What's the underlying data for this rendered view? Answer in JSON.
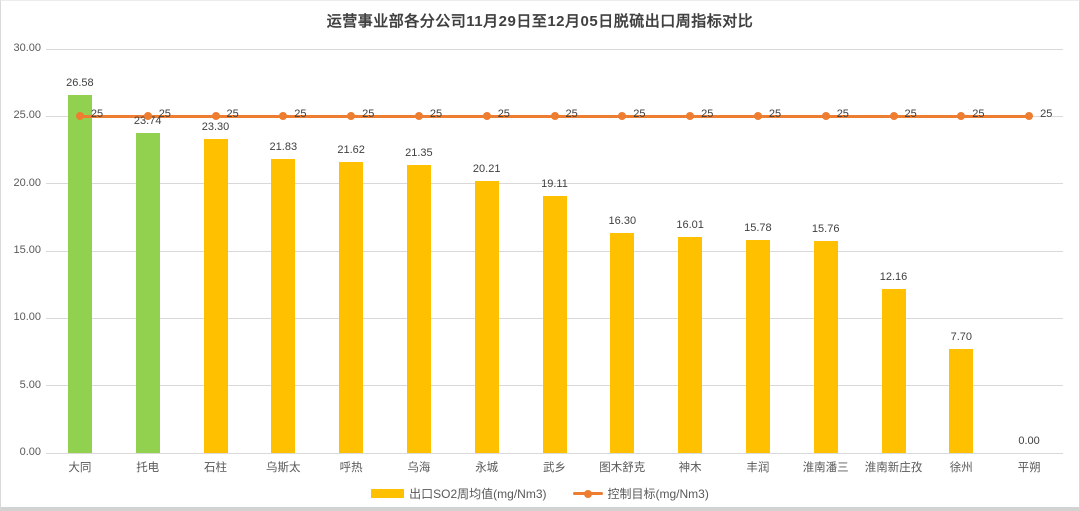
{
  "chart": {
    "title": "运营事业部各分公司11月29日至12月05日脱硫出口周指标对比",
    "yticks": [
      "0.00",
      "5.00",
      "10.00",
      "15.00",
      "20.00",
      "25.00",
      "30.00"
    ],
    "chart_data": {
      "type": "bar",
      "categories": [
        "大同",
        "托电",
        "石柱",
        "乌斯太",
        "呼热",
        "乌海",
        "永城",
        "武乡",
        "图木舒克",
        "神木",
        "丰润",
        "淮南潘三",
        "淮南新庄孜",
        "徐州",
        "平朔"
      ],
      "series": [
        {
          "name": "出口SO2周均值(mg/Nm3)",
          "type": "bar",
          "values": [
            26.58,
            23.74,
            23.3,
            21.83,
            21.62,
            21.35,
            20.21,
            19.11,
            16.3,
            16.01,
            15.78,
            15.76,
            12.16,
            7.7,
            0.0
          ],
          "labels": [
            "26.58",
            "23.74",
            "23.30",
            "21.83",
            "21.62",
            "21.35",
            "20.21",
            "19.11",
            "16.30",
            "16.01",
            "15.78",
            "15.76",
            "12.16",
            "7.70",
            "0.00"
          ],
          "default_color": "#FFC000",
          "highlight_color": "#92D050",
          "highlight_indices": [
            0,
            1
          ]
        },
        {
          "name": "控制目标(mg/Nm3)",
          "type": "line",
          "values": [
            25,
            25,
            25,
            25,
            25,
            25,
            25,
            25,
            25,
            25,
            25,
            25,
            25,
            25,
            25
          ],
          "labels": [
            "25",
            "25",
            "25",
            "25",
            "25",
            "25",
            "25",
            "25",
            "25",
            "25",
            "25",
            "25",
            "25",
            "25",
            "25"
          ],
          "color": "#ED7D31"
        }
      ],
      "ylim": [
        0,
        30
      ],
      "ytick_step": 5,
      "grid": true,
      "legend_position": "bottom"
    },
    "colors": {
      "grid": "#D9D9D9",
      "axis_text": "#595959",
      "data_label": "#404040",
      "title": "#404040",
      "background": "#FFFFFF"
    }
  }
}
